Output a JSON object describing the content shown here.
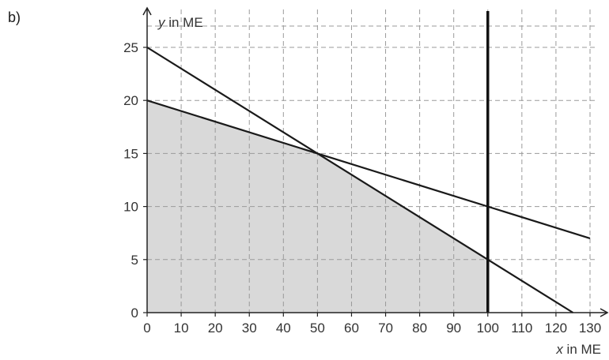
{
  "part_label": "b)",
  "chart_data": {
    "type": "line",
    "xlabel_var": "x",
    "xlabel_unit": " in ME",
    "ylabel_var": "y",
    "ylabel_unit": " in ME",
    "xlim": [
      0,
      130
    ],
    "ylim": [
      0,
      25
    ],
    "x_ticks": [
      0,
      10,
      20,
      30,
      40,
      50,
      60,
      70,
      80,
      90,
      100,
      110,
      120,
      130
    ],
    "y_ticks": [
      0,
      5,
      10,
      15,
      20,
      25
    ],
    "grid": true,
    "grid_style": "dashed",
    "vertical_line_x": 100,
    "series": [
      {
        "x": [
          0,
          125
        ],
        "y": [
          25,
          0
        ]
      },
      {
        "x": [
          0,
          130
        ],
        "y": [
          20,
          7
        ]
      }
    ],
    "shaded_region": {
      "x": [
        0,
        0,
        50,
        100,
        100
      ],
      "y": [
        0,
        20,
        15,
        5,
        0
      ]
    }
  }
}
